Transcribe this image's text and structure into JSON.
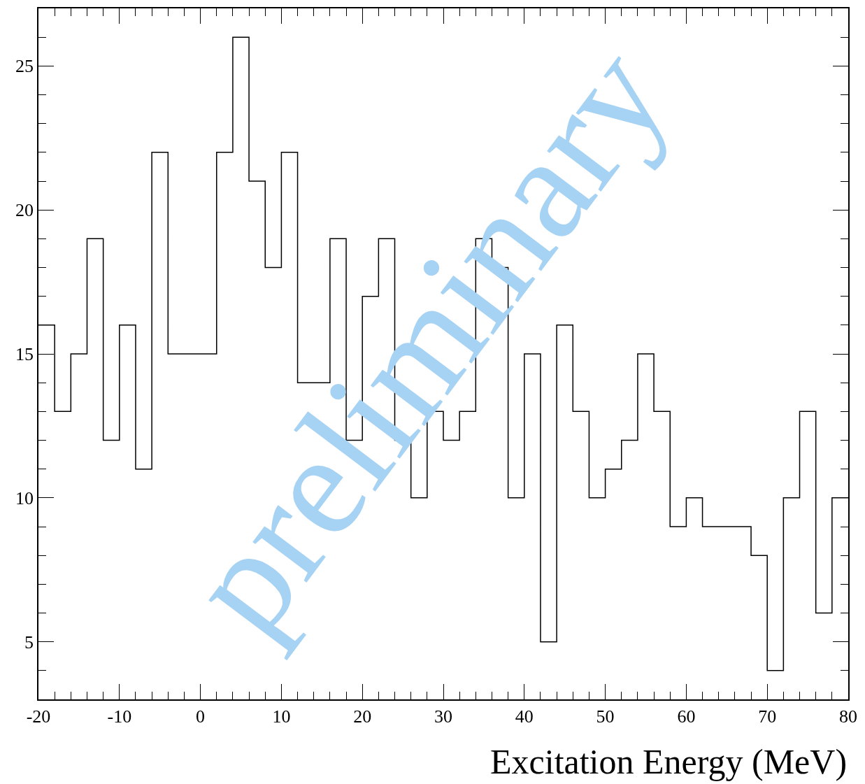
{
  "chart_data": {
    "type": "histogram",
    "xlabel": "Excitation Energy (MeV)",
    "bins": [
      -20,
      -18,
      -16,
      -14,
      -12,
      -10,
      -8,
      -6,
      -4,
      -2,
      0,
      2,
      4,
      6,
      8,
      10,
      12,
      14,
      16,
      18,
      20,
      22,
      24,
      26,
      28,
      30,
      32,
      34,
      36,
      38,
      40,
      42,
      44,
      46,
      48,
      50,
      52,
      54,
      56,
      58,
      60,
      62,
      64,
      66,
      68,
      70,
      72,
      74,
      76,
      78,
      80
    ],
    "values": [
      16,
      13,
      15,
      19,
      12,
      16,
      11,
      22,
      15,
      15,
      15,
      22,
      26,
      21,
      18,
      22,
      14,
      14,
      19,
      12,
      17,
      19,
      12,
      10,
      13,
      12,
      13,
      19,
      18,
      10,
      15,
      5,
      16,
      13,
      10,
      11,
      12,
      15,
      13,
      9,
      10,
      9,
      9,
      9,
      8,
      4,
      10,
      13,
      6,
      10
    ],
    "color": "#000000",
    "xlim": [
      -20,
      80
    ],
    "xticks": [
      -20,
      -10,
      0,
      10,
      20,
      30,
      40,
      50,
      60,
      70,
      80
    ],
    "ylim": [
      3,
      27
    ],
    "yticks": [
      5,
      10,
      15,
      20,
      25
    ],
    "grid": false,
    "annotations": [
      "preliminary"
    ]
  }
}
